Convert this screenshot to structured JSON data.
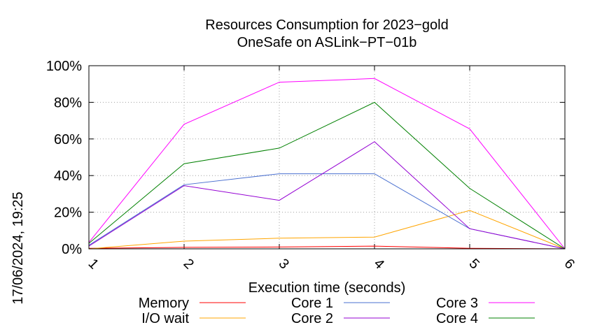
{
  "chart_data": {
    "type": "line",
    "title": "Resources Consumption for 2023−gold",
    "subtitle": "OneSafe on ASLink−PT−01b",
    "xlabel": "Execution time (seconds)",
    "ylabel": "",
    "side_label": "17/06/2024, 19:25",
    "x": [
      1,
      2,
      3,
      4,
      5,
      6
    ],
    "xlim": [
      1,
      6
    ],
    "ylim": [
      0,
      100
    ],
    "x_ticks": [
      "1",
      "2",
      "3",
      "4",
      "5",
      "6"
    ],
    "y_ticks": [
      "0%",
      "20%",
      "40%",
      "60%",
      "80%",
      "100%"
    ],
    "grid": true,
    "legend_position": "bottom",
    "series": [
      {
        "name": "Memory",
        "color": "#ff0000",
        "values": [
          0.3,
          0.8,
          1.0,
          1.5,
          0.3,
          0
        ]
      },
      {
        "name": "I/O wait",
        "color": "#ffa500",
        "values": [
          0,
          4.2,
          5.8,
          6.4,
          21,
          0
        ]
      },
      {
        "name": "Core 1",
        "color": "#4a70d0",
        "values": [
          2,
          35,
          41,
          41,
          11,
          0
        ]
      },
      {
        "name": "Core 2",
        "color": "#9400d3",
        "values": [
          1.5,
          34.5,
          26.5,
          58.5,
          11,
          0
        ]
      },
      {
        "name": "Core 3",
        "color": "#ff00ff",
        "values": [
          3.5,
          68,
          91,
          93,
          65.5,
          0
        ]
      },
      {
        "name": "Core 4",
        "color": "#008000",
        "values": [
          3,
          46.5,
          55,
          80,
          33,
          0
        ]
      }
    ]
  }
}
